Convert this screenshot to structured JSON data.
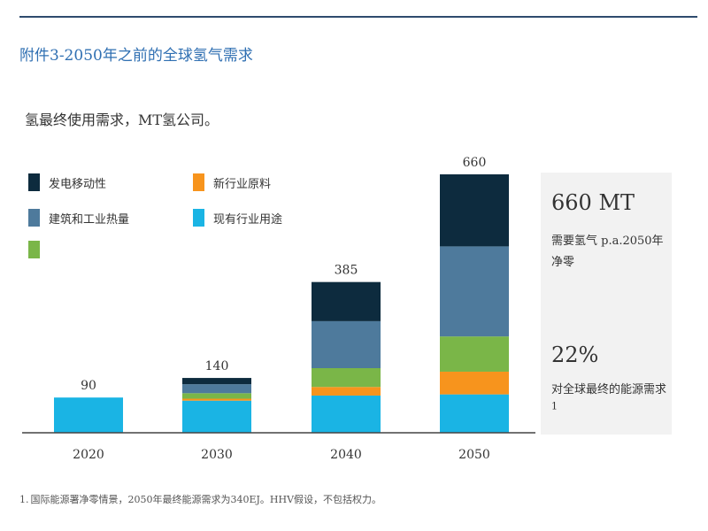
{
  "header": {
    "exhibit_title": "附件3-2050年之前的全球氢气需求",
    "subtitle": "氢最终使用需求，MT氢公司。"
  },
  "chart_data": {
    "type": "bar",
    "stacked": true,
    "categories": [
      "2020",
      "2030",
      "2040",
      "2050"
    ],
    "totals": [
      "90",
      "140",
      "385",
      "660"
    ],
    "series": [
      {
        "name": "现有行业用途",
        "color": "#1ab4e4",
        "values": [
          90,
          82,
          95,
          98
        ]
      },
      {
        "name": "新行业原料",
        "color": "#f7941d",
        "values": [
          0,
          5,
          22,
          58
        ]
      },
      {
        "name": "",
        "color": "#7ab648",
        "values": [
          0,
          14,
          48,
          90
        ]
      },
      {
        "name": "建筑和工业热量",
        "color": "#4e7a9c",
        "values": [
          0,
          23,
          120,
          230
        ]
      },
      {
        "name": "发电移动性",
        "color": "#0d2b3e",
        "values": [
          0,
          16,
          100,
          184
        ]
      }
    ],
    "ylim": [
      0,
      660
    ],
    "grid": false,
    "legend_position": "top-left"
  },
  "legend": [
    {
      "label": "发电移动性",
      "color": "#0d2b3e"
    },
    {
      "label": "新行业原料",
      "color": "#f7941d"
    },
    {
      "label": "建筑和工业热量",
      "color": "#4e7a9c"
    },
    {
      "label": "现有行业用途",
      "color": "#1ab4e4"
    },
    {
      "label": "",
      "color": "#7ab648"
    }
  ],
  "side_panel": {
    "value1": "660 MT",
    "text1": "需要氢气 p.a.2050年净零",
    "value2": "22%",
    "text2": "对全球最终的能源需求",
    "text2_sup": "1"
  },
  "footnote": {
    "marker": "1.",
    "text": "国际能源署净零情景，2050年最终能源需求为340EJ。HHV假设，不包括权力。"
  }
}
